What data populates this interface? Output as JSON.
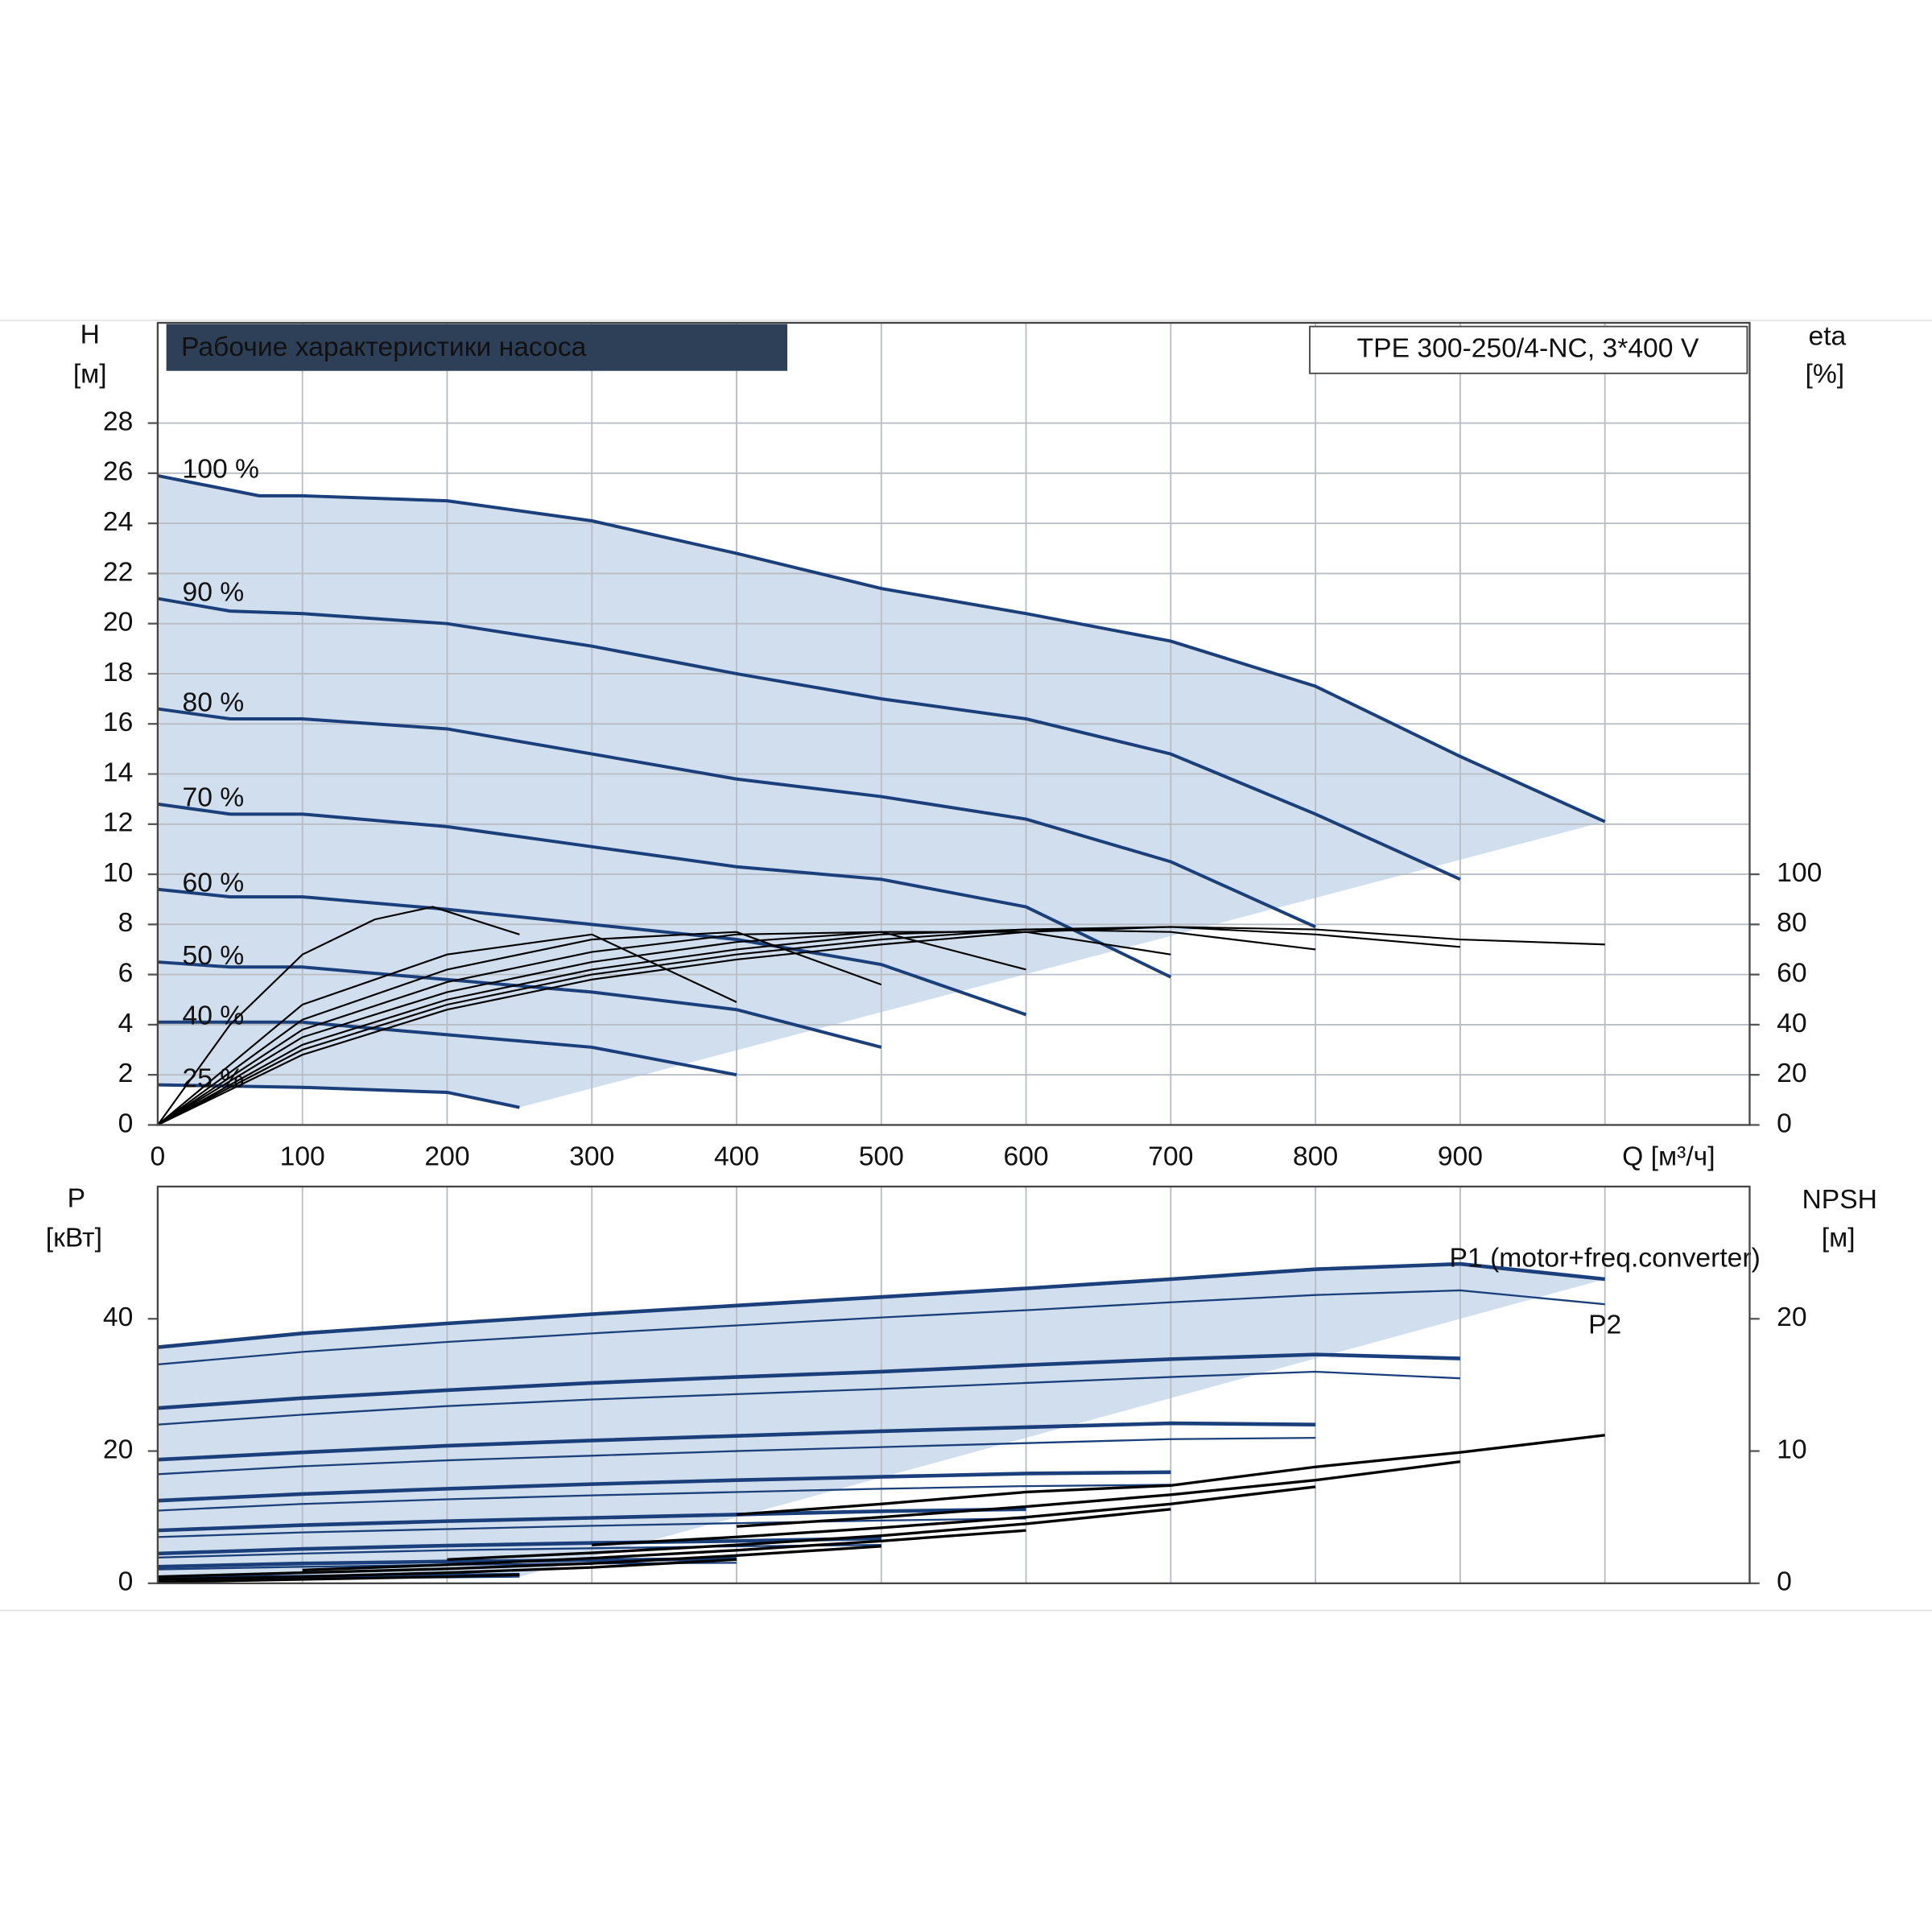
{
  "chart_data": [
    {
      "type": "line",
      "title": "Рабочие характеристики насоса",
      "subtitle": "TPE 300-250/4-NC, 3*400 V",
      "y_label": "H",
      "y_unit": "[м]",
      "y2_label": "eta",
      "y2_unit": "[%]",
      "xlim": [
        0,
        1100
      ],
      "xticks": [
        0,
        100,
        200,
        300,
        400,
        500,
        600,
        700,
        800,
        900,
        {
          "value": 1000,
          "label": "Q [м³/ч]"
        }
      ],
      "ylim": [
        0,
        32
      ],
      "yticks": [
        0,
        2,
        4,
        6,
        8,
        10,
        12,
        14,
        16,
        18,
        20,
        22,
        24,
        26,
        28
      ],
      "y2lim": [
        0,
        320
      ],
      "y2ticks": [
        0,
        20,
        40,
        60,
        80,
        100
      ],
      "grid": true,
      "region_color": "#d0deed",
      "series": [
        {
          "name": "100 %",
          "color": "#1a3f7a",
          "x": [
            0,
            70,
            100,
            200,
            300,
            400,
            500,
            600,
            700,
            800,
            900,
            1000
          ],
          "values": [
            25.9,
            25.1,
            25.1,
            24.9,
            24.1,
            22.8,
            21.4,
            20.4,
            19.3,
            17.5,
            14.7,
            12.1
          ]
        },
        {
          "name": "90 %",
          "color": "#1a3f7a",
          "x": [
            0,
            50,
            100,
            200,
            300,
            400,
            500,
            600,
            700,
            800,
            900
          ],
          "values": [
            21,
            20.5,
            20.4,
            20.0,
            19.1,
            18.0,
            17.0,
            16.2,
            14.8,
            12.4,
            9.8
          ]
        },
        {
          "name": "80 %",
          "color": "#1a3f7a",
          "x": [
            0,
            50,
            100,
            200,
            300,
            400,
            500,
            600,
            700,
            800
          ],
          "values": [
            16.6,
            16.2,
            16.2,
            15.8,
            14.8,
            13.8,
            13.1,
            12.2,
            10.5,
            7.9
          ]
        },
        {
          "name": "70 %",
          "color": "#1a3f7a",
          "x": [
            0,
            50,
            100,
            200,
            300,
            400,
            500,
            600,
            700
          ],
          "values": [
            12.8,
            12.4,
            12.4,
            11.9,
            11.1,
            10.3,
            9.8,
            8.7,
            5.9
          ]
        },
        {
          "name": "60 %",
          "color": "#1a3f7a",
          "x": [
            0,
            50,
            100,
            200,
            300,
            400,
            500,
            600
          ],
          "values": [
            9.4,
            9.1,
            9.1,
            8.6,
            8.0,
            7.4,
            6.4,
            4.4
          ]
        },
        {
          "name": "50 %",
          "color": "#1a3f7a",
          "x": [
            0,
            50,
            100,
            200,
            300,
            400,
            500
          ],
          "values": [
            6.5,
            6.3,
            6.3,
            5.8,
            5.3,
            4.6,
            3.1
          ]
        },
        {
          "name": "40 %",
          "color": "#1a3f7a",
          "x": [
            0,
            100,
            200,
            300,
            400
          ],
          "values": [
            4.1,
            4.1,
            3.6,
            3.1,
            2.0
          ]
        },
        {
          "name": "25 %",
          "color": "#1a3f7a",
          "x": [
            0,
            100,
            200,
            250
          ],
          "values": [
            1.6,
            1.5,
            1.3,
            0.7
          ]
        },
        {
          "color": "#000000",
          "axis": "y2",
          "x": [
            0,
            100,
            200,
            300,
            400,
            500,
            600,
            700,
            800,
            900,
            1000
          ],
          "values": [
            0,
            28,
            46,
            58,
            66,
            72,
            77,
            79,
            78,
            74,
            72
          ]
        },
        {
          "color": "#000000",
          "axis": "y2",
          "x": [
            0,
            100,
            200,
            300,
            400,
            500,
            600,
            700,
            800,
            900
          ],
          "values": [
            0,
            30,
            48,
            60,
            68,
            74,
            78,
            79,
            76,
            71
          ]
        },
        {
          "color": "#000000",
          "axis": "y2",
          "x": [
            0,
            100,
            200,
            300,
            400,
            500,
            600,
            700,
            800
          ],
          "values": [
            0,
            32,
            50,
            62,
            70,
            76,
            78,
            77,
            70
          ]
        },
        {
          "color": "#000000",
          "axis": "y2",
          "x": [
            0,
            100,
            200,
            300,
            400,
            500,
            600,
            700
          ],
          "values": [
            0,
            35,
            53,
            65,
            73,
            77,
            77,
            68
          ]
        },
        {
          "color": "#000000",
          "axis": "y2",
          "x": [
            0,
            100,
            200,
            300,
            400,
            500,
            600
          ],
          "values": [
            0,
            38,
            57,
            69,
            76,
            77,
            62
          ]
        },
        {
          "color": "#000000",
          "axis": "y2",
          "x": [
            0,
            100,
            200,
            300,
            400,
            500
          ],
          "values": [
            0,
            42,
            62,
            74,
            77,
            56
          ]
        },
        {
          "color": "#000000",
          "axis": "y2",
          "x": [
            0,
            100,
            200,
            300,
            400
          ],
          "values": [
            0,
            48,
            68,
            76,
            49
          ]
        },
        {
          "color": "#000000",
          "axis": "y2",
          "x": [
            0,
            50,
            100,
            150,
            190,
            250
          ],
          "values": [
            0,
            40,
            68,
            82,
            87,
            76
          ]
        }
      ]
    },
    {
      "type": "line",
      "y_label": "P",
      "y_unit": "[кВт]",
      "y2_label": "NPSH",
      "y2_unit": "[м]",
      "xlim": [
        0,
        1100
      ],
      "ylim": [
        0,
        60
      ],
      "yticks": [
        0,
        20,
        40
      ],
      "y2lim": [
        0,
        30
      ],
      "y2ticks": [
        0,
        10,
        20
      ],
      "region_color": "#d0deed",
      "series": [
        {
          "name": "P1 (motor+freq.converter)",
          "color": "#1a3f7a",
          "x": [
            0,
            100,
            200,
            300,
            400,
            500,
            600,
            700,
            800,
            900,
            1000
          ],
          "values": [
            35.7,
            37.8,
            39.3,
            40.7,
            42,
            43.3,
            44.6,
            46,
            47.5,
            48.3,
            46
          ]
        },
        {
          "name": "P2",
          "color": "#1a3f7a",
          "x": [
            0,
            100,
            200,
            300,
            400,
            500,
            600,
            700,
            800,
            900,
            1000
          ],
          "values": [
            33.1,
            35,
            36.5,
            37.8,
            39,
            40.2,
            41.3,
            42.5,
            43.6,
            44.3,
            42.2
          ]
        },
        {
          "color": "#1a3f7a",
          "x": [
            0,
            100,
            200,
            300,
            400,
            500,
            600,
            700,
            800,
            900
          ],
          "values": [
            26.5,
            28,
            29.2,
            30.3,
            31.2,
            32,
            33,
            33.9,
            34.6,
            34.0
          ]
        },
        {
          "color": "#1a3f7a",
          "x": [
            0,
            100,
            200,
            300,
            400,
            500,
            600,
            700,
            800,
            900
          ],
          "values": [
            24,
            25.5,
            26.8,
            27.8,
            28.6,
            29.4,
            30.3,
            31.2,
            32,
            31.0
          ]
        },
        {
          "color": "#1a3f7a",
          "x": [
            0,
            100,
            200,
            300,
            400,
            500,
            600,
            700,
            800
          ],
          "values": [
            18.7,
            19.8,
            20.8,
            21.6,
            22.3,
            23,
            23.6,
            24.2,
            24.0
          ]
        },
        {
          "color": "#1a3f7a",
          "x": [
            0,
            100,
            200,
            300,
            400,
            500,
            600,
            700,
            800
          ],
          "values": [
            16.5,
            17.7,
            18.6,
            19.3,
            20,
            20.6,
            21.2,
            21.8,
            22.0
          ]
        },
        {
          "color": "#1a3f7a",
          "x": [
            0,
            100,
            200,
            300,
            400,
            500,
            600,
            700
          ],
          "values": [
            12.5,
            13.5,
            14.3,
            15,
            15.6,
            16.1,
            16.6,
            16.8
          ]
        },
        {
          "color": "#1a3f7a",
          "x": [
            0,
            100,
            200,
            300,
            400,
            500,
            600,
            700
          ],
          "values": [
            11,
            12,
            12.7,
            13.3,
            13.8,
            14.3,
            14.7,
            14.9
          ]
        },
        {
          "color": "#1a3f7a",
          "x": [
            0,
            100,
            200,
            300,
            400,
            500,
            600
          ],
          "values": [
            8,
            8.8,
            9.4,
            9.9,
            10.4,
            10.9,
            11.2
          ]
        },
        {
          "color": "#1a3f7a",
          "x": [
            0,
            100,
            200,
            300,
            400,
            500,
            600
          ],
          "values": [
            7,
            7.7,
            8.2,
            8.7,
            9.1,
            9.5,
            9.8
          ]
        },
        {
          "color": "#1a3f7a",
          "x": [
            0,
            100,
            200,
            300,
            400,
            500
          ],
          "values": [
            4.5,
            5.2,
            5.7,
            6.1,
            6.4,
            6.8
          ]
        },
        {
          "color": "#1a3f7a",
          "x": [
            0,
            100,
            200,
            300,
            400,
            500
          ],
          "values": [
            3.9,
            4.5,
            5,
            5.3,
            5.6,
            5.8
          ]
        },
        {
          "color": "#1a3f7a",
          "x": [
            0,
            100,
            200,
            300,
            400
          ],
          "values": [
            2.5,
            3,
            3.3,
            3.5,
            3.7
          ]
        },
        {
          "color": "#1a3f7a",
          "x": [
            0,
            100,
            200,
            300,
            400
          ],
          "values": [
            2.1,
            2.5,
            2.8,
            3,
            3.1
          ]
        },
        {
          "color": "#1a3f7a",
          "x": [
            0,
            100,
            200,
            250
          ],
          "values": [
            0.9,
            1.0,
            1.2,
            1.3
          ]
        },
        {
          "color": "#1a3f7a",
          "x": [
            0,
            100,
            200,
            250
          ],
          "values": [
            0.6,
            0.8,
            0.9,
            1.0
          ]
        },
        {
          "color": "#000000",
          "axis": "y2",
          "x": [
            400,
            500,
            600,
            700,
            800,
            900,
            1000
          ],
          "values": [
            5.2,
            6,
            6.9,
            7.4,
            8.8,
            9.9,
            11.2
          ]
        },
        {
          "color": "#000000",
          "axis": "y2",
          "x": [
            400,
            500,
            600,
            700,
            800,
            900
          ],
          "values": [
            4.3,
            5,
            5.8,
            6.7,
            7.8,
            9.2
          ]
        },
        {
          "color": "#000000",
          "axis": "y2",
          "x": [
            300,
            400,
            500,
            600,
            700,
            800
          ],
          "values": [
            2.9,
            3.5,
            4.2,
            5,
            6,
            7.3
          ]
        },
        {
          "color": "#000000",
          "axis": "y2",
          "x": [
            200,
            300,
            400,
            500,
            600,
            700
          ],
          "values": [
            1.8,
            2.3,
            2.9,
            3.6,
            4.5,
            5.6
          ]
        },
        {
          "color": "#000000",
          "axis": "y2",
          "x": [
            100,
            200,
            300,
            400,
            500,
            600
          ],
          "values": [
            1.0,
            1.4,
            1.9,
            2.5,
            3.2,
            4.0
          ]
        },
        {
          "color": "#000000",
          "axis": "y2",
          "x": [
            0,
            100,
            200,
            300,
            400,
            500
          ],
          "values": [
            0.5,
            0.8,
            1.1,
            1.5,
            2.1,
            2.8
          ]
        },
        {
          "color": "#000000",
          "axis": "y2",
          "x": [
            0,
            100,
            200,
            300,
            400
          ],
          "values": [
            0.3,
            0.5,
            0.8,
            1.2,
            1.8
          ]
        },
        {
          "color": "#000000",
          "axis": "y2",
          "x": [
            0,
            100,
            200,
            250
          ],
          "values": [
            0.1,
            0.3,
            0.5,
            0.65
          ]
        }
      ]
    }
  ]
}
